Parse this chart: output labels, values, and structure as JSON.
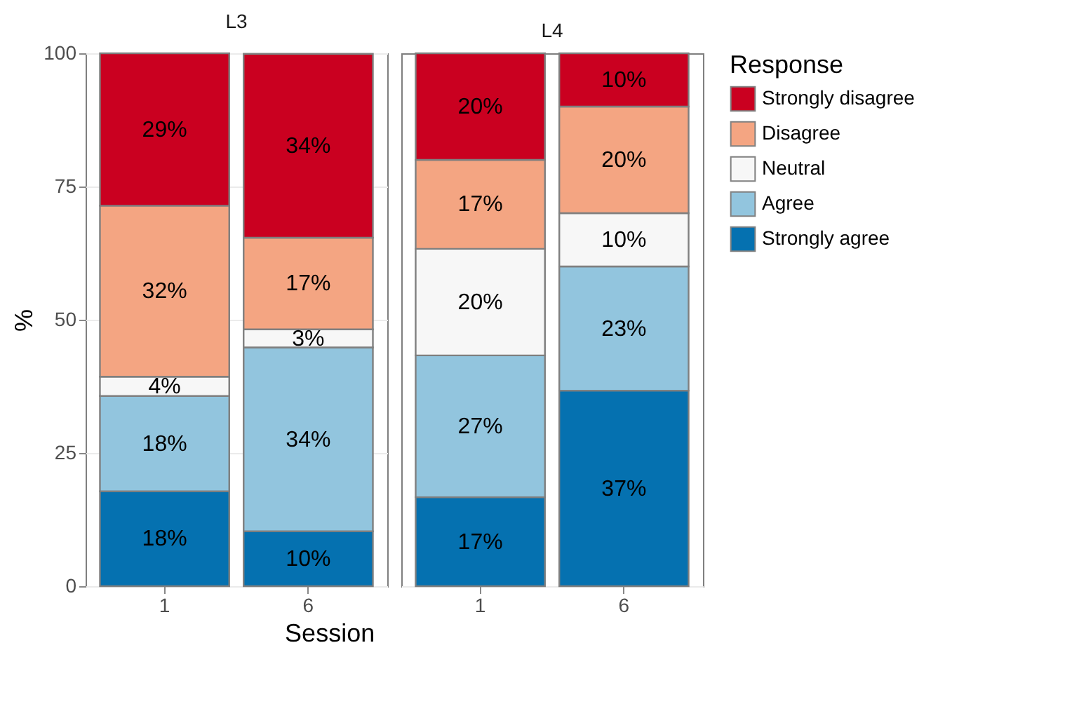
{
  "chart_data": [
    {
      "type": "bar",
      "title": "L3",
      "xlabel": "Session",
      "ylabel": "%",
      "categories": [
        "1",
        "6"
      ],
      "stacked": true,
      "ylim": [
        0,
        100
      ],
      "yticks": [
        0,
        25,
        50,
        75,
        100
      ],
      "grid": true,
      "legend_title": "Response",
      "legend": "right",
      "series": [
        {
          "name": "Strongly agree",
          "color": "#0571b0",
          "values": [
            17.8,
            10.3
          ],
          "value_labels": [
            "18%",
            "10%"
          ]
        },
        {
          "name": "Agree",
          "color": "#92c5de",
          "values": [
            17.9,
            34.5
          ],
          "value_labels": [
            "18%",
            "34%"
          ]
        },
        {
          "name": "Neutral",
          "color": "#f7f7f7",
          "values": [
            3.6,
            3.4
          ],
          "value_labels": [
            "4%",
            "3%"
          ]
        },
        {
          "name": "Disagree",
          "color": "#f4a582",
          "values": [
            32.1,
            17.2
          ],
          "value_labels": [
            "32%",
            "17%"
          ]
        },
        {
          "name": "Strongly disagree",
          "color": "#ca0020",
          "values": [
            28.6,
            34.5
          ],
          "value_labels": [
            "29%",
            "34%"
          ]
        }
      ]
    },
    {
      "type": "bar",
      "title": "L4",
      "categories": [
        "1",
        "6"
      ],
      "stacked": true,
      "ylim": [
        0,
        100
      ],
      "tick_labels": "x",
      "grid": true,
      "series": [
        {
          "color": "#0571b0",
          "values": [
            16.7,
            36.7
          ],
          "value_labels": [
            "17%",
            "37%"
          ]
        },
        {
          "color": "#92c5de",
          "values": [
            26.6,
            23.3
          ],
          "value_labels": [
            "27%",
            "23%"
          ]
        },
        {
          "color": "#f7f7f7",
          "values": [
            20,
            10
          ],
          "value_labels": [
            "20%",
            "10%"
          ]
        },
        {
          "color": "#f4a582",
          "values": [
            16.7,
            20
          ],
          "value_labels": [
            "17%",
            "20%"
          ]
        },
        {
          "color": "#ca0020",
          "values": [
            20,
            10
          ],
          "value_labels": [
            "20%",
            "10%"
          ]
        }
      ]
    }
  ]
}
